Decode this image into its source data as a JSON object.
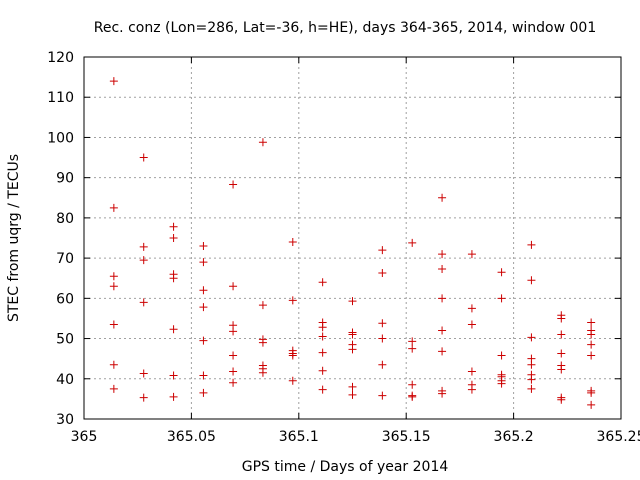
{
  "chart_data": {
    "type": "scatter",
    "title": "Rec. conz (Lon=286, Lat=-36, h=HE), days 364-365, 2014, window 001",
    "xlabel": "GPS time / Days of year 2014",
    "ylabel": "STEC from uqrg / TECUs",
    "xlim": [
      365,
      365.25
    ],
    "ylim": [
      30,
      120
    ],
    "grid": true,
    "xticks": [
      365,
      365.05,
      365.1,
      365.15,
      365.2,
      365.25
    ],
    "xtick_labels": [
      "365",
      "365.05",
      "365.1",
      "365.15",
      "365.2",
      "365.25"
    ],
    "yticks": [
      30,
      40,
      50,
      60,
      70,
      80,
      90,
      100,
      110,
      120
    ],
    "ytick_labels": [
      "30",
      "40",
      "50",
      "60",
      "70",
      "80",
      "90",
      "100",
      "110",
      "120"
    ],
    "marker": "+",
    "marker_color": "#cc0000",
    "series": [
      {
        "name": "STEC",
        "points": [
          [
            365.0139,
            114.0
          ],
          [
            365.0139,
            82.5
          ],
          [
            365.0139,
            65.5
          ],
          [
            365.0139,
            63.0
          ],
          [
            365.0139,
            53.5
          ],
          [
            365.0139,
            43.5
          ],
          [
            365.0139,
            37.5
          ],
          [
            365.0278,
            95.0
          ],
          [
            365.0278,
            72.8
          ],
          [
            365.0278,
            69.5
          ],
          [
            365.0278,
            59.0
          ],
          [
            365.0278,
            41.3
          ],
          [
            365.0278,
            35.3
          ],
          [
            365.0417,
            77.8
          ],
          [
            365.0417,
            75.0
          ],
          [
            365.0417,
            66.0
          ],
          [
            365.0417,
            65.0
          ],
          [
            365.0417,
            52.3
          ],
          [
            365.0417,
            40.8
          ],
          [
            365.0417,
            35.5
          ],
          [
            365.0556,
            73.0
          ],
          [
            365.0556,
            69.0
          ],
          [
            365.0556,
            62.0
          ],
          [
            365.0556,
            57.8
          ],
          [
            365.0556,
            49.5
          ],
          [
            365.0556,
            40.8
          ],
          [
            365.0556,
            36.5
          ],
          [
            365.0694,
            88.3
          ],
          [
            365.0694,
            63.0
          ],
          [
            365.0694,
            53.3
          ],
          [
            365.0694,
            51.8
          ],
          [
            365.0694,
            45.8
          ],
          [
            365.0694,
            41.8
          ],
          [
            365.0694,
            39.0
          ],
          [
            365.0833,
            98.8
          ],
          [
            365.0833,
            58.3
          ],
          [
            365.0833,
            49.8
          ],
          [
            365.0833,
            49.0
          ],
          [
            365.0833,
            43.3
          ],
          [
            365.0833,
            42.5
          ],
          [
            365.0833,
            41.5
          ],
          [
            365.0972,
            74.0
          ],
          [
            365.0972,
            59.5
          ],
          [
            365.0972,
            47.0
          ],
          [
            365.0972,
            46.3
          ],
          [
            365.0972,
            45.8
          ],
          [
            365.0972,
            39.5
          ],
          [
            365.1111,
            64.0
          ],
          [
            365.1111,
            54.0
          ],
          [
            365.1111,
            52.8
          ],
          [
            365.1111,
            50.5
          ],
          [
            365.1111,
            46.5
          ],
          [
            365.1111,
            42.0
          ],
          [
            365.1111,
            37.3
          ],
          [
            365.125,
            59.3
          ],
          [
            365.125,
            51.5
          ],
          [
            365.125,
            51.0
          ],
          [
            365.125,
            48.5
          ],
          [
            365.125,
            47.3
          ],
          [
            365.125,
            38.0
          ],
          [
            365.125,
            36.0
          ],
          [
            365.1389,
            72.0
          ],
          [
            365.1389,
            66.3
          ],
          [
            365.1389,
            53.8
          ],
          [
            365.1389,
            50.0
          ],
          [
            365.1389,
            43.5
          ],
          [
            365.1389,
            35.8
          ],
          [
            365.1528,
            73.8
          ],
          [
            365.1528,
            49.3
          ],
          [
            365.1528,
            47.5
          ],
          [
            365.1528,
            38.5
          ],
          [
            365.1528,
            35.8
          ],
          [
            365.1528,
            35.5
          ],
          [
            365.1667,
            85.0
          ],
          [
            365.1667,
            71.0
          ],
          [
            365.1667,
            67.3
          ],
          [
            365.1667,
            60.0
          ],
          [
            365.1667,
            52.0
          ],
          [
            365.1667,
            46.8
          ],
          [
            365.1667,
            37.0
          ],
          [
            365.1667,
            36.3
          ],
          [
            365.1806,
            71.0
          ],
          [
            365.1806,
            57.5
          ],
          [
            365.1806,
            53.5
          ],
          [
            365.1806,
            41.8
          ],
          [
            365.1806,
            38.5
          ],
          [
            365.1806,
            37.3
          ],
          [
            365.1944,
            66.5
          ],
          [
            365.1944,
            60.0
          ],
          [
            365.1944,
            45.8
          ],
          [
            365.1944,
            41.0
          ],
          [
            365.1944,
            40.5
          ],
          [
            365.1944,
            39.5
          ],
          [
            365.1944,
            38.8
          ],
          [
            365.2083,
            73.3
          ],
          [
            365.2083,
            64.5
          ],
          [
            365.2083,
            50.3
          ],
          [
            365.2083,
            45.0
          ],
          [
            365.2083,
            43.5
          ],
          [
            365.2083,
            41.0
          ],
          [
            365.2083,
            39.8
          ],
          [
            365.2083,
            37.5
          ],
          [
            365.2222,
            55.8
          ],
          [
            365.2222,
            55.0
          ],
          [
            365.2222,
            51.0
          ],
          [
            365.2222,
            46.3
          ],
          [
            365.2222,
            43.3
          ],
          [
            365.2222,
            42.3
          ],
          [
            365.2222,
            35.3
          ],
          [
            365.2222,
            34.8
          ],
          [
            365.2361,
            54.0
          ],
          [
            365.2361,
            52.0
          ],
          [
            365.2361,
            51.0
          ],
          [
            365.2361,
            48.5
          ],
          [
            365.2361,
            45.8
          ],
          [
            365.2361,
            37.0
          ],
          [
            365.2361,
            36.5
          ],
          [
            365.2361,
            33.5
          ]
        ]
      }
    ]
  }
}
